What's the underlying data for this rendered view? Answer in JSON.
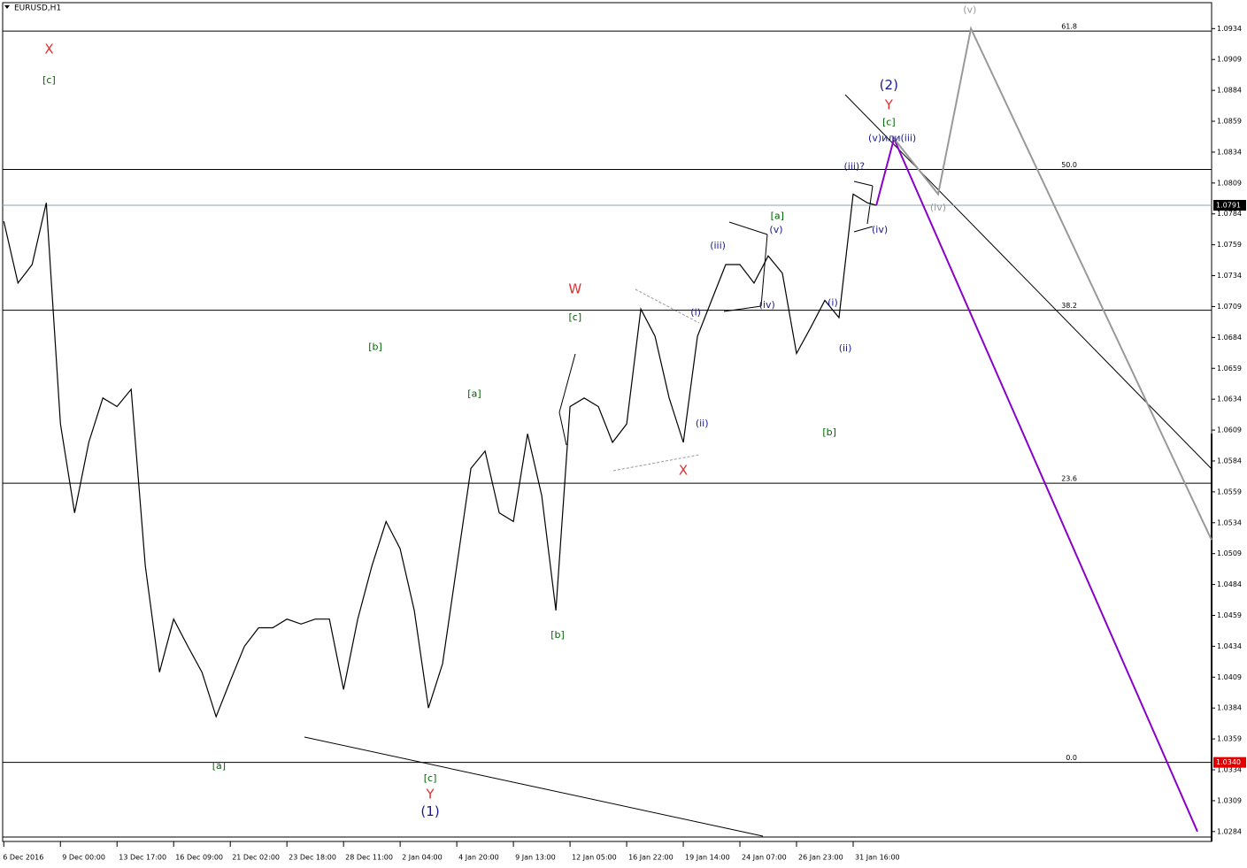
{
  "chart_data": {
    "type": "line",
    "title": "EURUSD,H1",
    "xlim": [
      -0.02,
      21.33
    ],
    "ylim": [
      1.0276,
      1.0955
    ],
    "xticks": [
      {
        "value": 0,
        "label": "6 Dec 2016"
      },
      {
        "value": 1,
        "label": "9 Dec 00:00"
      },
      {
        "value": 2,
        "label": "13 Dec 17:00"
      },
      {
        "value": 3,
        "label": "16 Dec 09:00"
      },
      {
        "value": 4,
        "label": "21 Dec 02:00"
      },
      {
        "value": 5,
        "label": "23 Dec 18:00"
      },
      {
        "value": 6,
        "label": "28 Dec 11:00"
      },
      {
        "value": 7,
        "label": "2 Jan 04:00"
      },
      {
        "value": 8,
        "label": "4 Jan 20:00"
      },
      {
        "value": 9,
        "label": "9 Jan 13:00"
      },
      {
        "value": 10,
        "label": "12 Jan 05:00"
      },
      {
        "value": 11,
        "label": "16 Jan 22:00"
      },
      {
        "value": 12,
        "label": "19 Jan 14:00"
      },
      {
        "value": 13,
        "label": "24 Jan 07:00"
      },
      {
        "value": 14,
        "label": "26 Jan 23:00"
      },
      {
        "value": 15,
        "label": "31 Jan 16:00"
      }
    ],
    "yticks": [
      1.0284,
      1.0309,
      1.0334,
      1.0359,
      1.0384,
      1.0409,
      1.0434,
      1.0459,
      1.0484,
      1.0509,
      1.0534,
      1.0559,
      1.0584,
      1.0609,
      1.0634,
      1.0659,
      1.0684,
      1.0709,
      1.0734,
      1.0759,
      1.0784,
      1.0809,
      1.0834,
      1.0859,
      1.0884,
      1.0909,
      1.0934
    ],
    "series": [
      {
        "color": "#000000",
        "x": [
          0,
          0.25,
          0.5,
          0.75,
          1,
          1.25,
          1.5,
          1.75,
          2,
          2.25,
          2.5,
          2.75,
          3,
          3.25,
          3.5,
          3.75,
          4,
          4.25,
          4.5,
          4.75,
          5,
          5.25,
          5.5,
          5.75,
          6,
          6.25,
          6.5,
          6.75,
          7,
          7.25,
          7.5,
          7.75,
          8,
          8.25,
          8.5,
          8.75,
          9,
          9.25,
          9.5,
          9.75,
          10,
          10.25,
          10.5,
          10.75,
          11,
          11.25,
          11.5,
          11.75,
          12,
          12.25,
          12.5,
          12.75,
          13,
          13.25,
          13.5,
          13.75,
          14,
          14.25,
          14.5,
          14.75,
          15,
          15.25,
          15.41
        ],
        "values": [
          1.0778,
          1.0728,
          1.0743,
          1.0793,
          1.0614,
          1.0542,
          1.0599,
          1.0635,
          1.0628,
          1.0642,
          1.0499,
          1.0413,
          1.0456,
          1.0434,
          1.0413,
          1.0377,
          1.0406,
          1.0434,
          1.0449,
          1.0449,
          1.0456,
          1.0452,
          1.0456,
          1.0456,
          1.0399,
          1.0456,
          1.0499,
          1.0535,
          1.0513,
          1.0463,
          1.0384,
          1.042,
          1.0499,
          1.0578,
          1.0592,
          1.0542,
          1.0535,
          1.0606,
          1.0556,
          1.0463,
          1.0628,
          1.0635,
          1.0628,
          1.0599,
          1.0614,
          1.0707,
          1.0685,
          1.0635,
          1.0599,
          1.0685,
          1.0714,
          1.0743,
          1.0743,
          1.0728,
          1.075,
          1.0736,
          1.0671,
          1.0692,
          1.0714,
          1.07,
          1.08,
          1.0793,
          1.0791
        ]
      },
      {
        "color": "#8b00c9",
        "x": [
          15.41,
          15.72,
          21.08
        ],
        "values": [
          1.0791,
          1.0845,
          1.0284
        ]
      },
      {
        "color": "#999999",
        "x": [
          15.72,
          16.5,
          17.08,
          21.33
        ],
        "values": [
          1.0845,
          1.08,
          1.0934,
          1.052
        ]
      }
    ],
    "levels": [
      {
        "label": "61.8",
        "value": 1.0932
      },
      {
        "label": "50.0",
        "value": 1.082
      },
      {
        "label": "38.2",
        "value": 1.0706
      },
      {
        "label": "23.6",
        "value": 1.0566
      },
      {
        "label": "0.0",
        "value": 1.034
      }
    ],
    "price_tags": [
      {
        "label": "1.0791",
        "value": 1.0791,
        "color": "#000000"
      },
      {
        "label": "1.0340",
        "value": 1.034,
        "color": "#e00000"
      }
    ],
    "annotations": [
      {
        "text": "X",
        "x": 0.8,
        "y": 1.0917,
        "color": "#e03030"
      },
      {
        "text": "[c]",
        "x": 0.8,
        "y": 1.0892,
        "color": "#006400"
      },
      {
        "text": "[a]",
        "x": 3.8,
        "y": 1.0337,
        "color": "#006400"
      },
      {
        "text": "[b]",
        "x": 6.56,
        "y": 1.0676,
        "color": "#006400"
      },
      {
        "text": "[c]",
        "x": 7.53,
        "y": 1.0327,
        "color": "#006400"
      },
      {
        "text": "Y",
        "x": 7.53,
        "y": 1.0314,
        "color": "#e03030"
      },
      {
        "text": "(1)",
        "x": 7.53,
        "y": 1.03,
        "color": "#1a1a8c"
      },
      {
        "text": "[a]",
        "x": 8.31,
        "y": 1.0638,
        "color": "#006400"
      },
      {
        "text": "[b]",
        "x": 9.78,
        "y": 1.0443,
        "color": "#006400"
      },
      {
        "text": "[c]",
        "x": 10.09,
        "y": 1.07,
        "color": "#006400"
      },
      {
        "text": "W",
        "x": 10.09,
        "y": 1.0723,
        "color": "#e03030"
      },
      {
        "text": "X",
        "x": 12.0,
        "y": 1.0576,
        "color": "#e03030"
      },
      {
        "text": "(i)",
        "x": 12.22,
        "y": 1.0704,
        "color": "#1a1a8c"
      },
      {
        "text": "(ii)",
        "x": 12.33,
        "y": 1.0614,
        "color": "#1a1a8c"
      },
      {
        "text": "(iii)",
        "x": 12.61,
        "y": 1.0758,
        "color": "#1a1a8c"
      },
      {
        "text": "(iv)",
        "x": 13.48,
        "y": 1.071,
        "color": "#1a1a8c"
      },
      {
        "text": "(v)",
        "x": 13.64,
        "y": 1.0771,
        "color": "#1a1a8c"
      },
      {
        "text": "[a]",
        "x": 13.66,
        "y": 1.0782,
        "color": "#006400"
      },
      {
        "text": "[b]",
        "x": 14.58,
        "y": 1.0607,
        "color": "#006400"
      },
      {
        "text": "(i)",
        "x": 14.64,
        "y": 1.0712,
        "color": "#1a1a8c"
      },
      {
        "text": "(ii)",
        "x": 14.86,
        "y": 1.0675,
        "color": "#1a1a8c"
      },
      {
        "text": "(iii)?",
        "x": 15.02,
        "y": 1.0822,
        "color": "#1a1a8c"
      },
      {
        "text": "(iv)",
        "x": 15.47,
        "y": 1.0771,
        "color": "#1a1a8c"
      },
      {
        "text": "(v)или(iii)",
        "x": 15.69,
        "y": 1.0845,
        "color": "#1a1a8c"
      },
      {
        "text": "[c]",
        "x": 15.63,
        "y": 1.0858,
        "color": "#006400"
      },
      {
        "text": "Y",
        "x": 15.63,
        "y": 1.0872,
        "color": "#e03030"
      },
      {
        "text": "(2)",
        "x": 15.63,
        "y": 1.0888,
        "color": "#1a1a8c"
      },
      {
        "text": "(iv)",
        "x": 16.5,
        "y": 1.0789,
        "color": "#999999"
      },
      {
        "text": "(v)",
        "x": 17.06,
        "y": 1.0949,
        "color": "#999999"
      }
    ]
  }
}
